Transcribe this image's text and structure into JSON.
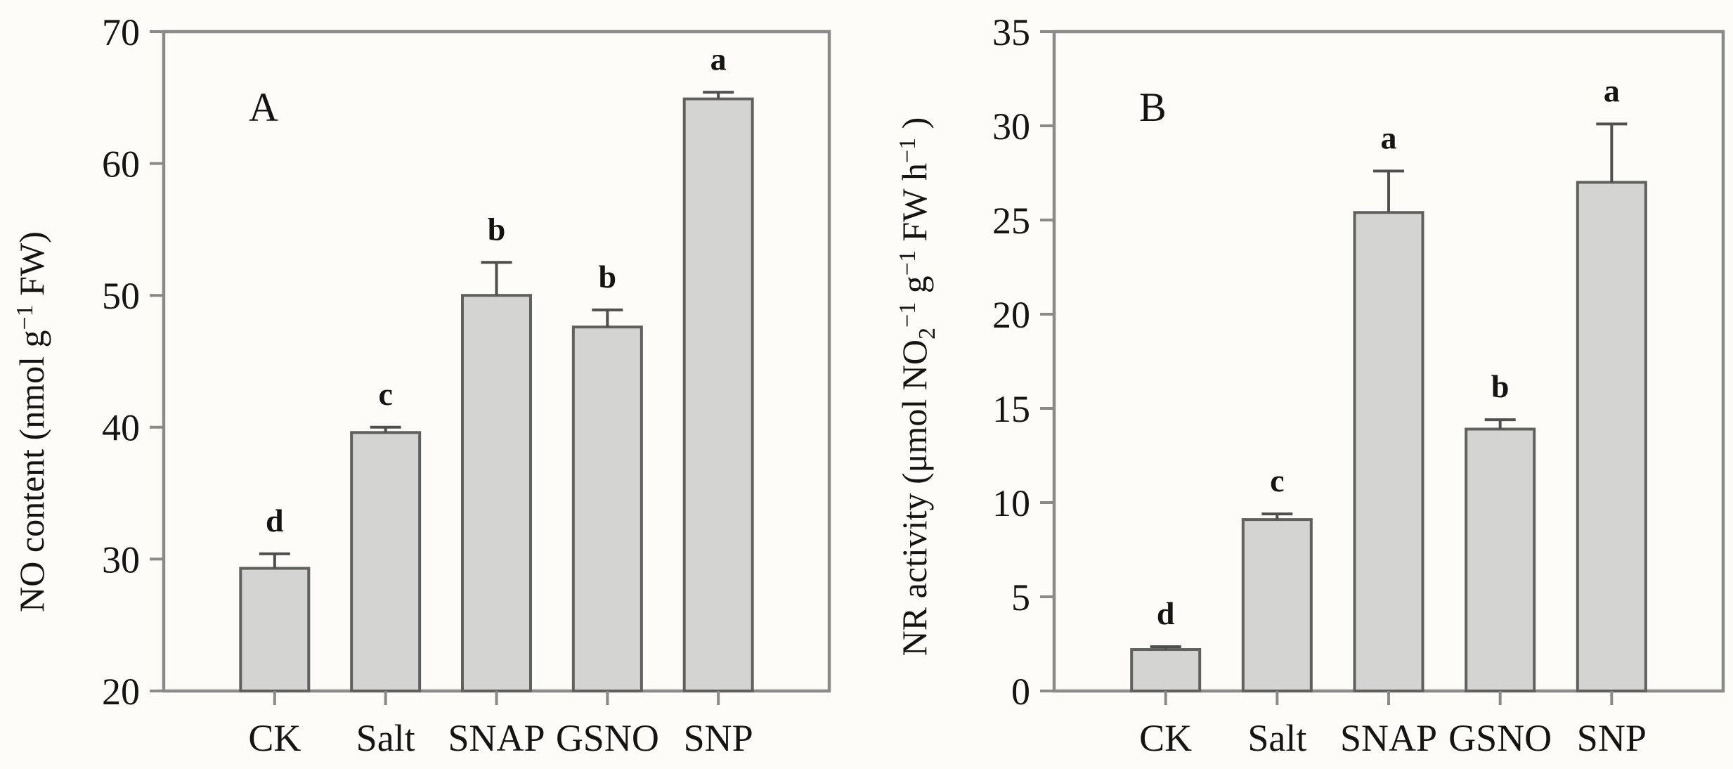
{
  "figure": {
    "background": "#fdfcf8",
    "bar_fill": "#d4d4d2",
    "bar_edge": "#606060",
    "axis_color": "#8a8a8a",
    "error_color": "#4f4f4f",
    "text_color": "#141414"
  },
  "chart_data": [
    {
      "type": "bar",
      "panel_label": "A",
      "title": "",
      "xlabel": "",
      "ylabel": "NO content (nmol g−1 FW)",
      "ylabel_parts": [
        {
          "text": "NO content (nmol g"
        },
        {
          "text": "−1",
          "script": "sup"
        },
        {
          "text": " FW)"
        }
      ],
      "categories": [
        "CK",
        "Salt",
        "SNAP",
        "GSNO",
        "SNP"
      ],
      "values": [
        29.3,
        39.6,
        50.0,
        47.6,
        64.9
      ],
      "errors": [
        1.1,
        0.4,
        2.5,
        1.3,
        0.5
      ],
      "sig_letters": [
        "d",
        "c",
        "b",
        "b",
        "a"
      ],
      "ylim": [
        20,
        70
      ],
      "yticks": [
        20,
        30,
        40,
        50,
        60,
        70
      ],
      "grid": false,
      "legend": null
    },
    {
      "type": "bar",
      "panel_label": "B",
      "title": "",
      "xlabel": "",
      "ylabel": "NR activity (μmol NO2−1 g−1 FW h−1 )",
      "ylabel_parts": [
        {
          "text": "NR activity (μmol NO"
        },
        {
          "text": "2",
          "script": "sub"
        },
        {
          "text": "−1",
          "script": "sup"
        },
        {
          "text": " g"
        },
        {
          "text": "−1",
          "script": "sup"
        },
        {
          "text": " FW h"
        },
        {
          "text": "−1",
          "script": "sup"
        },
        {
          "text": " )"
        }
      ],
      "categories": [
        "CK",
        "Salt",
        "SNAP",
        "GSNO",
        "SNP"
      ],
      "values": [
        2.2,
        9.1,
        25.4,
        13.9,
        27.0
      ],
      "errors": [
        0.15,
        0.3,
        2.2,
        0.5,
        3.1
      ],
      "sig_letters": [
        "d",
        "c",
        "a",
        "b",
        "a"
      ],
      "ylim": [
        0,
        35
      ],
      "yticks": [
        0,
        5,
        10,
        15,
        20,
        25,
        30,
        35
      ],
      "grid": false,
      "legend": null
    }
  ]
}
